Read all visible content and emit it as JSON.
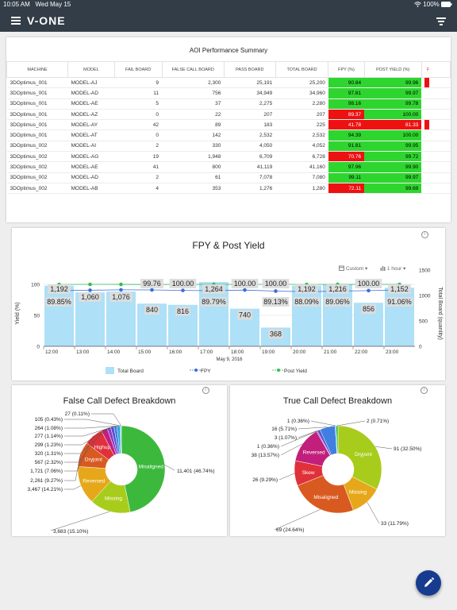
{
  "status_bar": {
    "time": "10:05 AM",
    "date": "Wed May 15",
    "battery": "100%"
  },
  "app": {
    "logo": "V-ONE",
    "menu_icon": "hamburger-icon",
    "filter_icon": "filter-icon",
    "fab_icon": "pencil-icon"
  },
  "table_card": {
    "title": "AOI Performance Summary",
    "columns": [
      "MACHINE",
      "MODEL",
      "FAIL BOARD",
      "FALSE CALL BOARD",
      "PASS BOARD",
      "TOTAL BOARD",
      "FPY (%)",
      "POST YIELD (%)",
      "F"
    ],
    "rows": [
      {
        "machine": "3DOptimus_001",
        "model": "MODEL-AJ",
        "fail": "9",
        "false_call": "2,300",
        "pass": "25,191",
        "total": "25,200",
        "fpy": "90.84",
        "fpy_color": "#2fd52f",
        "post": "99.96",
        "post_color": "#2fd52f",
        "extra_color": "#ee1111"
      },
      {
        "machine": "3DOptimus_001",
        "model": "MODEL-AD",
        "fail": "11",
        "false_call": "756",
        "pass": "34,949",
        "total": "34,960",
        "fpy": "97.81",
        "fpy_color": "#2fd52f",
        "post": "99.97",
        "post_color": "#2fd52f",
        "extra_color": ""
      },
      {
        "machine": "3DOptimus_001",
        "model": "MODEL-AE",
        "fail": "5",
        "false_call": "37",
        "pass": "2,275",
        "total": "2,280",
        "fpy": "98.16",
        "fpy_color": "#2fd52f",
        "post": "99.78",
        "post_color": "#2fd52f",
        "extra_color": ""
      },
      {
        "machine": "3DOptimus_001",
        "model": "MODEL-AZ",
        "fail": "0",
        "false_call": "22",
        "pass": "207",
        "total": "207",
        "fpy": "89.37",
        "fpy_color": "#ee1111",
        "post": "100.00",
        "post_color": "#2fd52f",
        "extra_color": ""
      },
      {
        "machine": "3DOptimus_001",
        "model": "MODEL-AY",
        "fail": "42",
        "false_call": "89",
        "pass": "183",
        "total": "225",
        "fpy": "41.78",
        "fpy_color": "#ee1111",
        "post": "81.33",
        "post_color": "#ee1111",
        "extra_color": "#ee1111"
      },
      {
        "machine": "3DOptimus_001",
        "model": "MODEL-AT",
        "fail": "0",
        "false_call": "142",
        "pass": "2,532",
        "total": "2,532",
        "fpy": "94.39",
        "fpy_color": "#2fd52f",
        "post": "100.00",
        "post_color": "#2fd52f",
        "extra_color": ""
      },
      {
        "machine": "3DOptimus_002",
        "model": "MODEL-AI",
        "fail": "2",
        "false_call": "330",
        "pass": "4,050",
        "total": "4,052",
        "fpy": "91.81",
        "fpy_color": "#2fd52f",
        "post": "99.95",
        "post_color": "#2fd52f",
        "extra_color": ""
      },
      {
        "machine": "3DOptimus_002",
        "model": "MODEL-AG",
        "fail": "19",
        "false_call": "1,948",
        "pass": "6,709",
        "total": "6,728",
        "fpy": "70.76",
        "fpy_color": "#ee1111",
        "post": "99.72",
        "post_color": "#2fd52f",
        "extra_color": ""
      },
      {
        "machine": "3DOptimus_002",
        "model": "MODEL-AE",
        "fail": "41",
        "false_call": "800",
        "pass": "41,119",
        "total": "41,160",
        "fpy": "97.96",
        "fpy_color": "#2fd52f",
        "post": "99.90",
        "post_color": "#2fd52f",
        "extra_color": ""
      },
      {
        "machine": "3DOptimus_002",
        "model": "MODEL-AD",
        "fail": "2",
        "false_call": "61",
        "pass": "7,078",
        "total": "7,080",
        "fpy": "99.11",
        "fpy_color": "#2fd52f",
        "post": "99.97",
        "post_color": "#2fd52f",
        "extra_color": ""
      },
      {
        "machine": "3DOptimus_002",
        "model": "MODEL-AB",
        "fail": "4",
        "false_call": "353",
        "pass": "1,276",
        "total": "1,280",
        "fpy": "72.11",
        "fpy_color": "#ee1111",
        "post": "99.69",
        "post_color": "#2fd52f",
        "extra_color": ""
      }
    ]
  },
  "chart_card": {
    "custom_label": "Custom",
    "interval_label": "1 hour"
  },
  "chart_data": [
    {
      "type": "bar",
      "title": "FPY & Post Yield",
      "xlabel": "May 9, 2016",
      "ylabel": "Yield (%)",
      "y2label": "Total Board (quantity)",
      "categories": [
        "12:00",
        "13:00",
        "14:00",
        "15:00",
        "16:00",
        "17:00",
        "18:00",
        "19:00",
        "20:00",
        "21:00",
        "22:00",
        "23:00"
      ],
      "ylim": [
        0,
        100
      ],
      "yticks": [
        "0",
        "50",
        "100"
      ],
      "y2lim": [
        0,
        1500
      ],
      "y2ticks": [
        "0",
        "500",
        "1000",
        "1500"
      ],
      "grid": true,
      "legend": "bottom",
      "series": [
        {
          "name": "Total Board",
          "kind": "bar",
          "axis": "right",
          "color": "#aee0f7",
          "values": [
            1192,
            1060,
            1076,
            840,
            816,
            1264,
            740,
            368,
            1192,
            1216,
            856,
            1152
          ],
          "labels": [
            "1,192",
            "1,060",
            "1,076",
            "840",
            "816",
            "1,264",
            "740",
            "368",
            "1,192",
            "1,216",
            "856",
            "1,152"
          ]
        },
        {
          "name": "FPY",
          "kind": "line",
          "axis": "left",
          "color": "#3a6fd8",
          "values": [
            89.85,
            90.5,
            91.2,
            91.0,
            90.2,
            89.79,
            90.8,
            89.13,
            88.09,
            89.06,
            89.9,
            91.06
          ],
          "labels": [
            "89.85%",
            "",
            "",
            "",
            "",
            "89.79%",
            "",
            "89.13%",
            "88.09%",
            "89.06%",
            "",
            "91.06%"
          ]
        },
        {
          "name": "Post Yield",
          "kind": "line",
          "axis": "left",
          "color": "#33bb55",
          "values": [
            99.8,
            100,
            99.9,
            99.76,
            100,
            99.9,
            100,
            100,
            99.8,
            99.9,
            100,
            99.9
          ],
          "labels": [
            "",
            "",
            "",
            "99.76",
            "100.00",
            "",
            "100.00",
            "100.00",
            "",
            "",
            "100.00",
            ""
          ]
        }
      ]
    },
    {
      "type": "pie",
      "title": "False Call Defect Breakdown",
      "slices": [
        {
          "name": "Misaligned",
          "value": 11401,
          "label": "11,401 (46.74%)",
          "color": "#3cb93c"
        },
        {
          "name": "Missing",
          "value": 3683,
          "label": "3,683 (15.10%)",
          "color": "#a8cc1c"
        },
        {
          "name": "Reversed",
          "value": 3467,
          "label": "3,467 (14.21%)",
          "color": "#e6a81a"
        },
        {
          "name": "Dryjoint",
          "value": 2261,
          "label": "2,261 (9.27%)",
          "color": "#d95a21"
        },
        {
          "name": "Highup",
          "value": 1721,
          "label": "1,721 (7.06%)",
          "color": "#e0303a"
        },
        {
          "name": "",
          "value": 567,
          "label": "567 (2.32%)",
          "color": "#c21f7c"
        },
        {
          "name": "",
          "value": 320,
          "label": "320 (1.31%)",
          "color": "#8a3cc8"
        },
        {
          "name": "",
          "value": 299,
          "label": "299 (1.23%)",
          "color": "#5a4fd0"
        },
        {
          "name": "",
          "value": 277,
          "label": "277 (1.14%)",
          "color": "#3f7fe0"
        },
        {
          "name": "",
          "value": 264,
          "label": "264 (1.08%)",
          "color": "#2aa3e0"
        },
        {
          "name": "",
          "value": 105,
          "label": "105 (0.43%)",
          "color": "#30c0c8"
        },
        {
          "name": "",
          "value": 27,
          "label": "27 (0.11%)",
          "color": "#66dcaa"
        }
      ]
    },
    {
      "type": "pie",
      "title": "True Call Defect Breakdown",
      "slices": [
        {
          "name": "Dryjoint",
          "value": 91,
          "label": "91 (32.50%)",
          "color": "#a8cc1c"
        },
        {
          "name": "Missing",
          "value": 33,
          "label": "33 (11.79%)",
          "color": "#e6a81a"
        },
        {
          "name": "Misaligned",
          "value": 69,
          "label": "69 (24.64%)",
          "color": "#d95a21"
        },
        {
          "name": "Skew",
          "value": 26,
          "label": "26 (9.29%)",
          "color": "#e0303a"
        },
        {
          "name": "Reversed",
          "value": 38,
          "label": "38 (13.57%)",
          "color": "#c21f7c"
        },
        {
          "name": "",
          "value": 1,
          "label": "1 (0.36%)",
          "color": "#8a3cc8"
        },
        {
          "name": "",
          "value": 3,
          "label": "3 (1.07%)",
          "color": "#5a4fd0"
        },
        {
          "name": "",
          "value": 16,
          "label": "16 (5.71%)",
          "color": "#3f7fe0"
        },
        {
          "name": "",
          "value": 1,
          "label": "1 (0.36%)",
          "color": "#2aa3e0"
        },
        {
          "name": "",
          "value": 2,
          "label": "2 (0.71%)",
          "color": "#3cb93c"
        }
      ]
    }
  ]
}
